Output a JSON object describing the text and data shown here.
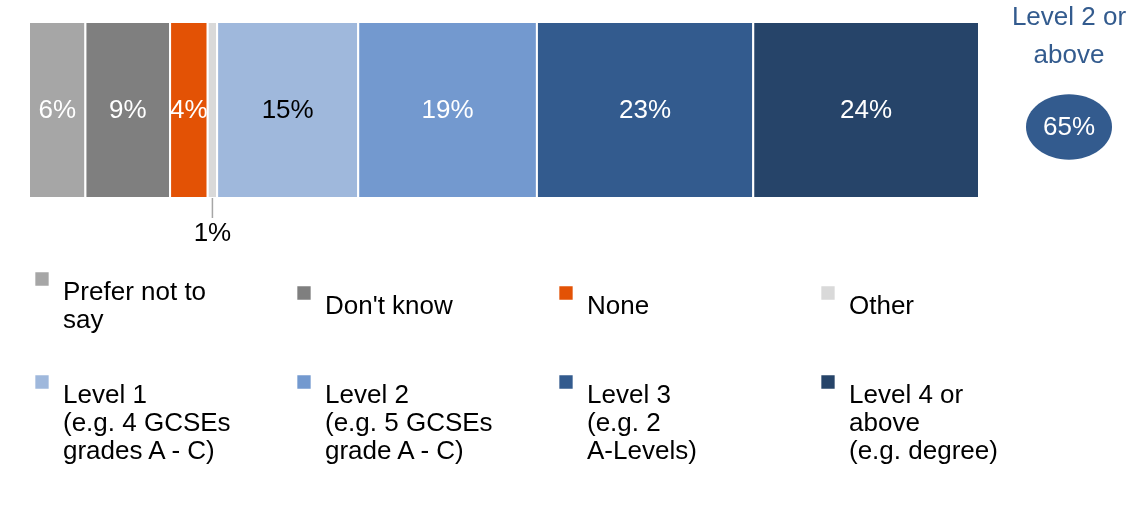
{
  "chart_data": {
    "type": "bar",
    "orientation": "horizontal",
    "stacked": true,
    "categories": [
      null
    ],
    "tick_labels": false,
    "legend": "bottom",
    "series": [
      {
        "name": "Prefer not to say",
        "color": "#a6a6a6",
        "values": [
          6
        ],
        "value_labels": [
          "6%"
        ]
      },
      {
        "name": "Don't know",
        "color": "#7f7f7f",
        "values": [
          9
        ],
        "value_labels": [
          "9%"
        ]
      },
      {
        "name": "None",
        "color": "#e35205",
        "values": [
          4
        ],
        "value_labels": [
          "4%"
        ]
      },
      {
        "name": "Other",
        "color": "#d9d9d9",
        "values": [
          1
        ],
        "value_labels": [
          "1%"
        ]
      },
      {
        "name": "Level 1 (e.g. 4 GCSEs grades A - C)",
        "color": "#9fb8dc",
        "values": [
          15
        ],
        "value_labels": [
          "15%"
        ]
      },
      {
        "name": "Level 2 (e.g. 5 GCSEs grade A - C)",
        "color": "#7399cf",
        "values": [
          19
        ],
        "value_labels": [
          "19%"
        ]
      },
      {
        "name": "Level 3 (e.g. 2 A-Levels)",
        "color": "#335b8e",
        "values": [
          23
        ],
        "value_labels": [
          "23%"
        ]
      },
      {
        "name": "Level 4 or above (e.g. degree)",
        "color": "#264469",
        "values": [
          24
        ],
        "value_labels": [
          "24%"
        ]
      }
    ],
    "annotations": [
      "Level 2 or above",
      "65%"
    ]
  }
}
